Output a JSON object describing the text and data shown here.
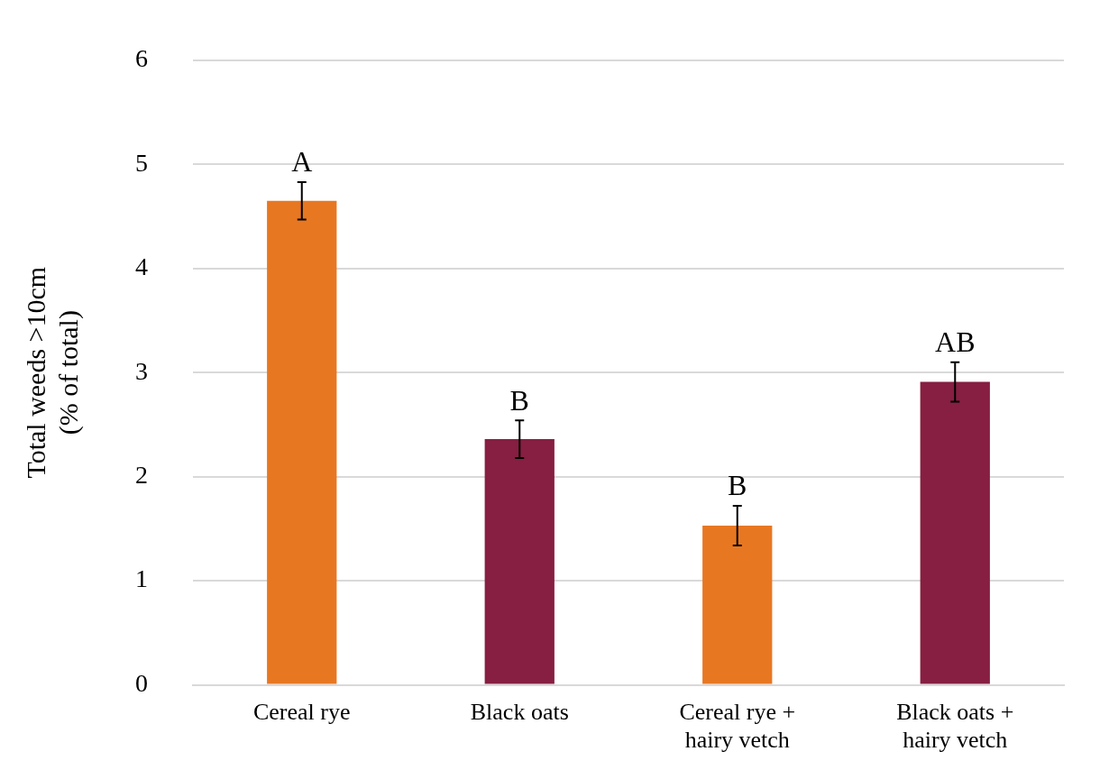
{
  "chart_data": {
    "type": "bar",
    "ylabel": "Total weeds >10cm (% of total)",
    "categories": [
      "Cereal rye",
      "Black oats",
      "Cereal rye + hairy vetch",
      "Black oats + hairy vetch"
    ],
    "values": [
      4.65,
      2.36,
      1.53,
      2.91
    ],
    "colors": [
      "#e87722",
      "#861f41",
      "#e87722",
      "#861f41"
    ],
    "errors": [
      0.18,
      0.18,
      0.19,
      0.19
    ],
    "ylim": [
      0,
      6
    ],
    "yticks": [
      0,
      1,
      2,
      3,
      4,
      5,
      6
    ],
    "grid": "y",
    "legend": false,
    "annotations": [
      {
        "text": "A",
        "x": "Cereal rye",
        "y": 4.83
      },
      {
        "text": "B",
        "x": "Black oats",
        "y": 2.54
      },
      {
        "text": "B",
        "x": "Cereal rye + hairy vetch",
        "y": 1.72
      },
      {
        "text": "AB",
        "x": "Black oats + hairy vetch",
        "y": 3.1
      }
    ]
  }
}
